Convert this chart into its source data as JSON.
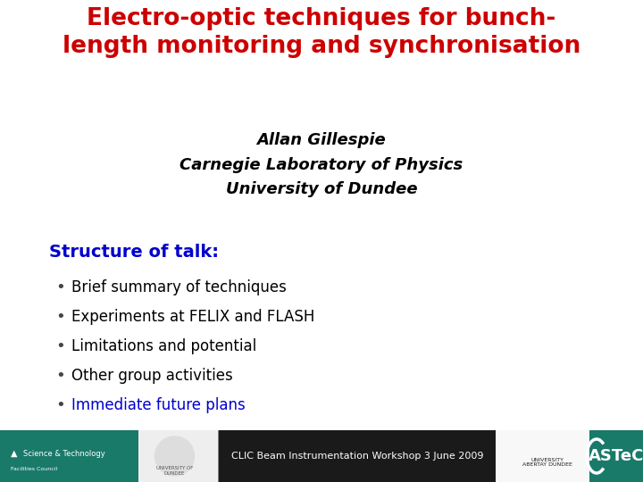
{
  "title_line1": "Electro-optic techniques for bunch-",
  "title_line2": "length monitoring and synchronisation",
  "title_color": "#cc0000",
  "title_fontsize": 19,
  "author": "Allan Gillespie",
  "affiliation1": "Carnegie Laboratory of Physics",
  "affiliation2": "University of Dundee",
  "author_fontsize": 13,
  "section_heading": "Structure of talk:",
  "section_color": "#0000cc",
  "section_fontsize": 14,
  "bullet_items": [
    "Brief summary of techniques",
    "Experiments at FELIX and FLASH",
    "Limitations and potential",
    "Other group activities",
    "Immediate future plans"
  ],
  "bullet_colors": [
    "#000000",
    "#000000",
    "#000000",
    "#000000",
    "#0000cc"
  ],
  "bullet_fontsize": 12,
  "footer_text": "CLIC Beam Instrumentation Workshop 3 June 2009",
  "footer_bg": "#1a1a1a",
  "footer_text_color": "#ffffff",
  "footer_left_bg": "#1a7a6a",
  "footer_right_bg": "#1a7a6a",
  "footer_left_text": "Science & Technology",
  "footer_astec_text": "ASTeC",
  "background_color": "#ffffff"
}
